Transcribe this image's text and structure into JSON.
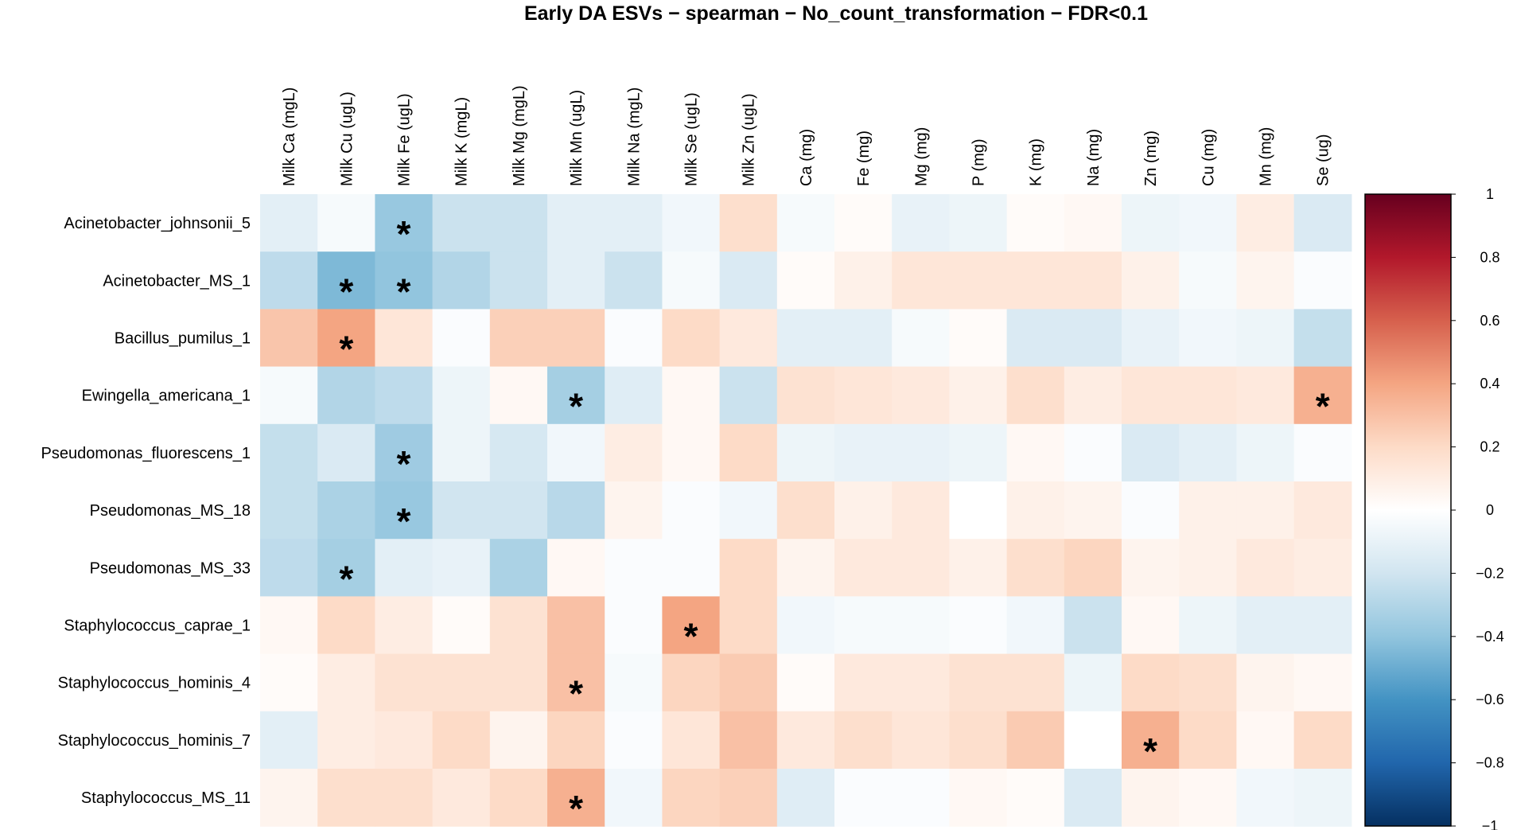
{
  "chart_data": {
    "type": "heatmap",
    "title": "Early DA ESVs − spearman − No_count_transformation − FDR<0.1",
    "columns": [
      "Milk Ca (mgL)",
      "Milk Cu (ugL)",
      "Milk Fe (ugL)",
      "Milk K (mgL)",
      "Milk Mg (mgL)",
      "Milk Mn (ugL)",
      "Milk Na (mgL)",
      "Milk Se (ugL)",
      "Milk Zn (ugL)",
      "Ca (mg)",
      "Fe (mg)",
      "Mg (mg)",
      "P (mg)",
      "K (mg)",
      "Na (mg)",
      "Zn (mg)",
      "Cu (mg)",
      "Mn (mg)",
      "Se (ug)"
    ],
    "rows": [
      "Acinetobacter_johnsonii_5",
      "Acinetobacter_MS_1",
      "Bacillus_pumilus_1",
      "Ewingella_americana_1",
      "Pseudomonas_fluorescens_1",
      "Pseudomonas_MS_18",
      "Pseudomonas_MS_33",
      "Staphylococcus_caprae_1",
      "Staphylococcus_hominis_4",
      "Staphylococcus_hominis_7",
      "Staphylococcus_MS_11"
    ],
    "values": [
      [
        -0.12,
        -0.04,
        -0.38,
        -0.22,
        -0.22,
        -0.12,
        -0.12,
        -0.06,
        0.18,
        -0.04,
        0.02,
        -0.1,
        -0.08,
        0.02,
        0.04,
        -0.08,
        -0.06,
        0.1,
        -0.16
      ],
      [
        -0.26,
        -0.45,
        -0.4,
        -0.3,
        -0.22,
        -0.12,
        -0.22,
        -0.04,
        -0.16,
        0.02,
        0.08,
        0.14,
        0.14,
        0.14,
        0.14,
        0.08,
        -0.04,
        0.06,
        -0.02
      ],
      [
        0.28,
        0.4,
        0.14,
        -0.02,
        0.24,
        0.24,
        -0.02,
        0.2,
        0.12,
        -0.12,
        -0.12,
        -0.04,
        0.02,
        -0.16,
        -0.16,
        -0.1,
        -0.06,
        -0.08,
        -0.24
      ],
      [
        -0.04,
        -0.3,
        -0.26,
        -0.08,
        0.04,
        -0.34,
        -0.14,
        0.04,
        -0.22,
        0.16,
        0.14,
        0.12,
        0.08,
        0.18,
        0.1,
        0.14,
        0.14,
        0.12,
        0.36
      ],
      [
        -0.24,
        -0.16,
        -0.36,
        -0.08,
        -0.18,
        -0.06,
        0.1,
        0.04,
        0.2,
        -0.08,
        -0.1,
        -0.1,
        -0.08,
        0.04,
        -0.02,
        -0.16,
        -0.12,
        -0.08,
        -0.02
      ],
      [
        -0.24,
        -0.32,
        -0.38,
        -0.2,
        -0.2,
        -0.28,
        0.06,
        -0.02,
        -0.06,
        0.18,
        0.08,
        0.12,
        0.0,
        0.08,
        0.06,
        -0.02,
        0.08,
        0.08,
        0.12
      ],
      [
        -0.26,
        -0.34,
        -0.12,
        -0.1,
        -0.32,
        0.04,
        -0.02,
        -0.02,
        0.2,
        0.06,
        0.12,
        0.12,
        0.08,
        0.18,
        0.22,
        0.06,
        0.08,
        0.12,
        0.1
      ],
      [
        0.04,
        0.2,
        0.1,
        0.02,
        0.16,
        0.3,
        -0.02,
        0.4,
        0.2,
        -0.06,
        -0.04,
        -0.04,
        -0.02,
        -0.06,
        -0.22,
        0.04,
        -0.08,
        -0.12,
        -0.12
      ],
      [
        0.02,
        0.1,
        0.16,
        0.16,
        0.16,
        0.3,
        -0.04,
        0.22,
        0.26,
        0.02,
        0.12,
        0.12,
        0.16,
        0.16,
        -0.08,
        0.2,
        0.18,
        0.06,
        0.04
      ],
      [
        -0.12,
        0.1,
        0.12,
        0.2,
        0.06,
        0.22,
        -0.02,
        0.14,
        0.3,
        0.12,
        0.18,
        0.14,
        0.18,
        0.26,
        0.0,
        0.36,
        0.2,
        0.04,
        0.2
      ],
      [
        0.06,
        0.18,
        0.18,
        0.12,
        0.2,
        0.36,
        -0.06,
        0.22,
        0.24,
        -0.14,
        -0.02,
        -0.02,
        0.04,
        0.02,
        -0.16,
        0.06,
        0.04,
        -0.06,
        -0.08
      ]
    ],
    "significance_marker": "*",
    "significant_cells": [
      [
        0,
        2
      ],
      [
        1,
        1
      ],
      [
        1,
        2
      ],
      [
        2,
        1
      ],
      [
        3,
        5
      ],
      [
        3,
        18
      ],
      [
        4,
        2
      ],
      [
        5,
        2
      ],
      [
        6,
        1
      ],
      [
        7,
        7
      ],
      [
        8,
        5
      ],
      [
        9,
        15
      ],
      [
        10,
        5
      ]
    ],
    "color_scale": {
      "name": "RdBu (reversed)",
      "range": [
        -1,
        1
      ],
      "stops": [
        "#053061",
        "#2166ac",
        "#4393c3",
        "#92c5de",
        "#d1e5f0",
        "#ffffff",
        "#fddbc7",
        "#f4a582",
        "#d6604d",
        "#b2182b",
        "#67001f"
      ],
      "tick_labels": [
        "−1",
        "−0.8",
        "−0.6",
        "−0.4",
        "−0.2",
        "0",
        "0.2",
        "0.4",
        "0.6",
        "0.8",
        "1"
      ],
      "tick_values": [
        -1,
        -0.8,
        -0.6,
        -0.4,
        -0.2,
        0,
        0.2,
        0.4,
        0.6,
        0.8,
        1
      ]
    },
    "legend_position": "right"
  }
}
